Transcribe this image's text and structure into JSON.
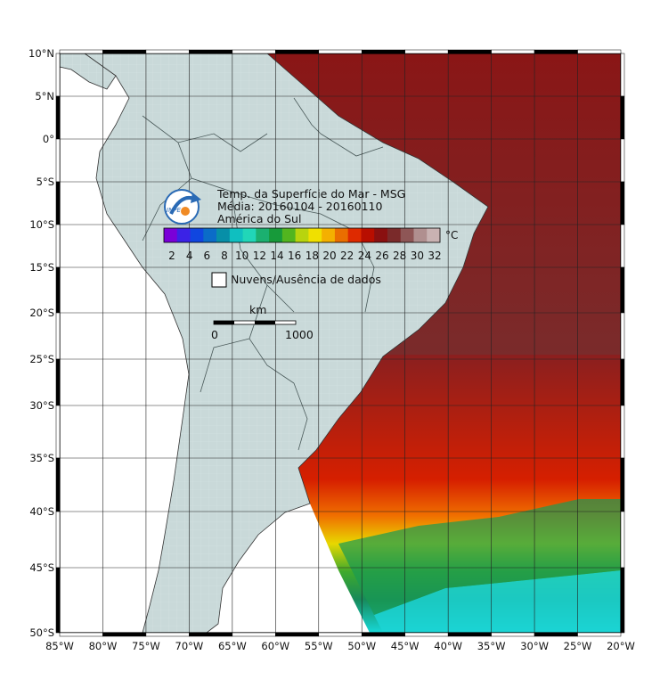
{
  "map": {
    "lat_labels": [
      "10°N",
      "5°N",
      "0°",
      "5°S",
      "10°S",
      "15°S",
      "20°S",
      "25°S",
      "30°S",
      "35°S",
      "40°S",
      "45°S",
      "50°S"
    ],
    "lon_labels": [
      "85°W",
      "80°W",
      "75°W",
      "70°W",
      "65°W",
      "60°W",
      "55°W",
      "50°W",
      "45°W",
      "40°W",
      "35°W",
      "30°W",
      "25°W",
      "20°W"
    ],
    "colors": {
      "land": "#c9d9d9",
      "ocean_warm": "#8a1f1f",
      "grid": "#222222",
      "frame": "#000000"
    }
  },
  "legend": {
    "title_line1": "Temp. da Superfície do Mar - MSG",
    "title_line2": "Média: 20160104 - 20160110",
    "title_line3": "América do Sul",
    "logo_text": "INPE",
    "unit": "°C",
    "colorbar_ticks": [
      "2",
      "4",
      "6",
      "8",
      "10",
      "12",
      "14",
      "16",
      "18",
      "20",
      "22",
      "24",
      "26",
      "28",
      "30",
      "32"
    ],
    "colorbar_colors": [
      "#7a00d8",
      "#3b22e6",
      "#1046e0",
      "#0b6cc8",
      "#078fa8",
      "#0fbfc0",
      "#21d6b8",
      "#1bb070",
      "#179a3a",
      "#52b51f",
      "#b8d40e",
      "#f0e000",
      "#f4b000",
      "#ea6e00",
      "#de2a00",
      "#b80e00",
      "#8a1010",
      "#7a2a2a",
      "#8e5656",
      "#b08f8f",
      "#c9b2b2"
    ],
    "clouds_label": "Nuvens/Ausência de dados",
    "scale_unit": "km",
    "scale_start": "0",
    "scale_end": "1000"
  }
}
